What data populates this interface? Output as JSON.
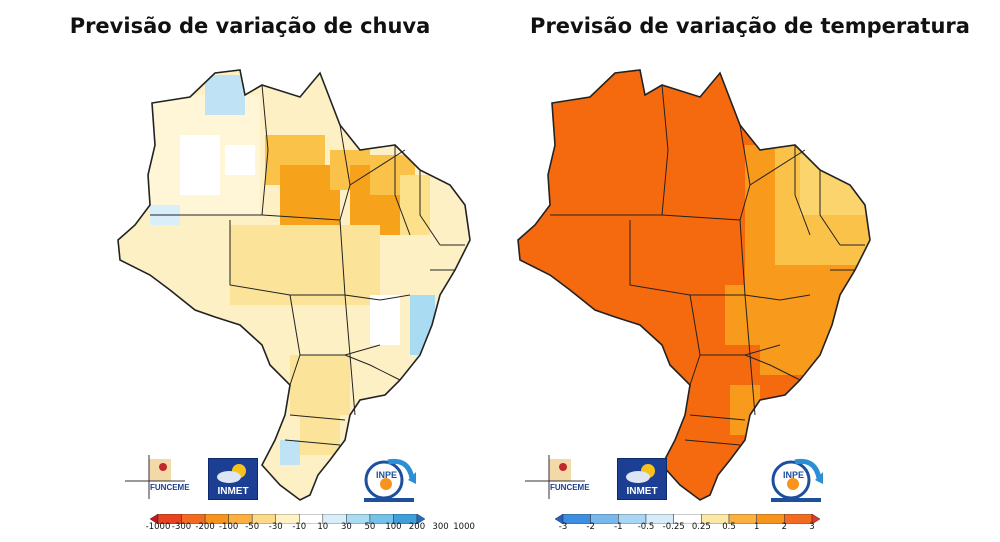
{
  "left_panel": {
    "title": "Previsão de variação de chuva",
    "colorbar_ticks": [
      "-1000",
      "-300",
      "-200",
      "-100",
      "-50",
      "-30",
      "-10",
      "10",
      "30",
      "50",
      "100",
      "200",
      "300",
      "1000"
    ],
    "colorbar_colors": [
      "#c4161c",
      "#e8421e",
      "#f26b21",
      "#f7941d",
      "#fbb040",
      "#fdd98a",
      "#fff3c4",
      "#ffffff",
      "#d8eef9",
      "#a9dbf2",
      "#74c2ea",
      "#3f9fdb",
      "#1f6fc0"
    ]
  },
  "right_panel": {
    "title": "Previsão de variação de temperatura",
    "colorbar_ticks": [
      "-3",
      "-2",
      "-1",
      "-0.5",
      "-0.25",
      "0.25",
      "0.5",
      "1",
      "2",
      "3"
    ],
    "colorbar_colors": [
      "#1f63c9",
      "#3b8ee0",
      "#79b8ef",
      "#a9d6f5",
      "#d6ecfa",
      "#ffffff",
      "#fde7a6",
      "#fbb040",
      "#f7941d",
      "#f26b21",
      "#e23a1f"
    ]
  },
  "logos": {
    "funceme": "FUNCEME",
    "inmet": "INMET",
    "inpe": "INPE"
  },
  "colors": {
    "rain_light": "#fdf0c4",
    "rain_mid": "#fbe39a",
    "rain_orange": "#f7a21b",
    "rain_blue": "#bfe3f5",
    "temp_main": "#f56a0f",
    "temp_orange": "#f89a1c",
    "temp_light": "#fbc24a"
  }
}
